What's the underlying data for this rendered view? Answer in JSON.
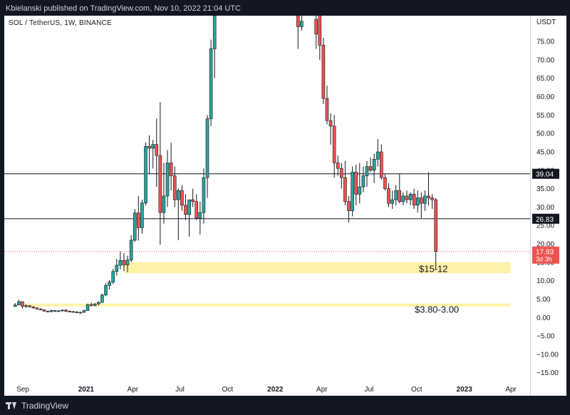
{
  "header": {
    "publish_line": "Kbielanski published on TradingView.com, Nov 10, 2022 21:04 UTC"
  },
  "symbol": {
    "label": "SOL / TetherUS, 1W, BINANCE"
  },
  "scale": {
    "currency": "USDT"
  },
  "footer": {
    "brand": "TradingView"
  },
  "colors": {
    "up": "#26a69a",
    "down": "#ef5350",
    "zone": "#fff2a8",
    "line": "#131722",
    "price_marker": "#ef5350"
  },
  "chart_data": {
    "type": "candlestick",
    "timeframe": "1W",
    "ylim": [
      -17,
      82
    ],
    "y_ticks": [
      -15,
      -10,
      -5,
      0,
      5,
      10,
      15,
      20,
      25,
      30,
      35,
      40,
      45,
      50,
      55,
      60,
      65,
      70,
      75
    ],
    "x_ticks": [
      {
        "label": "Sep",
        "date": "2020-09-01",
        "bold": false
      },
      {
        "label": "2021",
        "date": "2021-01-01",
        "bold": true
      },
      {
        "label": "Apr",
        "date": "2021-04-01",
        "bold": false
      },
      {
        "label": "Jul",
        "date": "2021-07-01",
        "bold": false
      },
      {
        "label": "Oct",
        "date": "2021-10-01",
        "bold": false
      },
      {
        "label": "2022",
        "date": "2022-01-01",
        "bold": true
      },
      {
        "label": "Apr",
        "date": "2022-04-01",
        "bold": false
      },
      {
        "label": "Jul",
        "date": "2022-07-01",
        "bold": false
      },
      {
        "label": "Oct",
        "date": "2022-10-01",
        "bold": false
      },
      {
        "label": "2023",
        "date": "2023-01-01",
        "bold": true
      },
      {
        "label": "Apr",
        "date": "2023-04-01",
        "bold": false
      }
    ],
    "horizontal_lines": [
      {
        "price": 39.04,
        "label": "39.04"
      },
      {
        "price": 26.83,
        "label": "26.83"
      }
    ],
    "zones": [
      {
        "low": 12,
        "high": 15,
        "label": "$15-12",
        "from": "2021-03-15",
        "to": "2023-03-31"
      },
      {
        "low": 3.0,
        "high": 3.8,
        "label": "$3.80-3.00",
        "from": "2020-09-01",
        "to": "2023-03-31"
      }
    ],
    "last_price": {
      "value": 17.93,
      "label": "17.93",
      "countdown": "3d 3h"
    },
    "candles": [
      [
        "2020-08-17",
        3.0,
        3.9,
        2.9,
        3.4
      ],
      [
        "2020-08-24",
        3.4,
        4.8,
        3.3,
        4.3
      ],
      [
        "2020-08-31",
        4.3,
        4.4,
        2.4,
        3.0
      ],
      [
        "2020-09-07",
        3.0,
        3.6,
        2.6,
        3.2
      ],
      [
        "2020-09-14",
        3.2,
        3.4,
        2.7,
        2.9
      ],
      [
        "2020-09-21",
        2.9,
        3.1,
        2.4,
        2.6
      ],
      [
        "2020-09-28",
        2.6,
        2.8,
        2.1,
        2.3
      ],
      [
        "2020-10-05",
        2.3,
        2.5,
        1.9,
        2.1
      ],
      [
        "2020-10-12",
        2.1,
        2.2,
        1.6,
        1.7
      ],
      [
        "2020-10-19",
        1.7,
        1.9,
        1.4,
        1.6
      ],
      [
        "2020-10-26",
        1.6,
        2.1,
        1.4,
        1.9
      ],
      [
        "2020-11-02",
        1.9,
        2.0,
        1.5,
        1.7
      ],
      [
        "2020-11-09",
        1.7,
        2.0,
        1.5,
        1.8
      ],
      [
        "2020-11-16",
        1.8,
        2.2,
        1.6,
        2.0
      ],
      [
        "2020-11-23",
        2.0,
        2.3,
        1.5,
        1.7
      ],
      [
        "2020-11-30",
        1.7,
        1.9,
        1.4,
        1.6
      ],
      [
        "2020-12-07",
        1.6,
        1.8,
        1.3,
        1.5
      ],
      [
        "2020-12-14",
        1.5,
        1.7,
        1.2,
        1.3
      ],
      [
        "2020-12-21",
        1.3,
        1.6,
        1.0,
        1.4
      ],
      [
        "2020-12-28",
        1.4,
        2.1,
        1.3,
        1.9
      ],
      [
        "2021-01-04",
        1.9,
        3.8,
        1.8,
        3.5
      ],
      [
        "2021-01-11",
        3.5,
        4.1,
        3.0,
        3.3
      ],
      [
        "2021-01-18",
        3.3,
        3.9,
        3.0,
        3.7
      ],
      [
        "2021-01-25",
        3.7,
        4.4,
        3.3,
        4.1
      ],
      [
        "2021-02-01",
        4.1,
        6.5,
        4.0,
        6.1
      ],
      [
        "2021-02-08",
        6.1,
        9.3,
        5.8,
        8.7
      ],
      [
        "2021-02-15",
        8.7,
        10.2,
        7.6,
        9.6
      ],
      [
        "2021-02-22",
        9.6,
        13.2,
        9.1,
        12.5
      ],
      [
        "2021-03-01",
        12.5,
        15.9,
        11.4,
        14.2
      ],
      [
        "2021-03-08",
        14.2,
        18.0,
        13.1,
        15.5
      ],
      [
        "2021-03-15",
        15.5,
        17.5,
        12.6,
        14.3
      ],
      [
        "2021-03-22",
        14.3,
        16.8,
        12.3,
        15.6
      ],
      [
        "2021-03-29",
        15.6,
        22.4,
        15.1,
        21.0
      ],
      [
        "2021-04-05",
        21.0,
        29.5,
        20.6,
        28.4
      ],
      [
        "2021-04-12",
        28.4,
        33.0,
        20.9,
        24.4
      ],
      [
        "2021-04-19",
        24.4,
        32.0,
        22.8,
        31.1
      ],
      [
        "2021-04-26",
        31.1,
        47.5,
        30.5,
        46.5
      ],
      [
        "2021-05-03",
        46.5,
        49.5,
        39.0,
        46.0
      ],
      [
        "2021-05-10",
        46.0,
        48.2,
        40.5,
        47.0
      ],
      [
        "2021-05-17",
        47.0,
        54.0,
        35.5,
        44.0
      ],
      [
        "2021-05-24",
        44.0,
        58.5,
        19.8,
        28.5
      ],
      [
        "2021-05-31",
        28.5,
        42.0,
        25.5,
        33.0
      ],
      [
        "2021-06-07",
        33.0,
        45.5,
        30.0,
        42.0
      ],
      [
        "2021-06-14",
        42.0,
        47.5,
        34.5,
        38.5
      ],
      [
        "2021-06-21",
        38.5,
        41.0,
        30.0,
        32.0
      ],
      [
        "2021-06-28",
        32.0,
        35.0,
        21.0,
        34.5
      ],
      [
        "2021-07-05",
        34.5,
        36.0,
        29.0,
        30.5
      ],
      [
        "2021-07-12",
        30.5,
        33.5,
        26.5,
        28.0
      ],
      [
        "2021-07-19",
        28.0,
        32.0,
        22.0,
        32.0
      ],
      [
        "2021-07-26",
        32.0,
        35.0,
        30.0,
        31.5
      ],
      [
        "2021-08-02",
        31.5,
        33.5,
        26.5,
        27.0
      ],
      [
        "2021-08-09",
        27.0,
        31.5,
        22.5,
        28.5
      ],
      [
        "2021-08-16",
        28.5,
        40.5,
        25.5,
        38.0
      ],
      [
        "2021-08-23",
        38.0,
        55.0,
        32.5,
        54.0
      ],
      [
        "2021-08-30",
        54.0,
        75.5,
        52.0,
        73.0
      ],
      [
        "2021-09-06",
        73.0,
        84.0,
        65.0,
        82.0
      ],
      [
        "2022-02-14",
        82.0,
        85.0,
        73.0,
        79.0
      ],
      [
        "2022-02-21",
        79.0,
        84.0,
        78.0,
        80.5
      ],
      [
        "2022-03-21",
        81.0,
        85.0,
        73.0,
        77.0
      ],
      [
        "2022-03-28",
        84.0,
        85.0,
        70.0,
        74.0
      ],
      [
        "2022-04-04",
        74.0,
        76.0,
        58.0,
        59.5
      ],
      [
        "2022-04-11",
        59.5,
        63.0,
        52.5,
        53.5
      ],
      [
        "2022-04-18",
        53.5,
        55.5,
        47.0,
        52.0
      ],
      [
        "2022-04-25",
        52.0,
        55.0,
        38.0,
        42.0
      ],
      [
        "2022-05-02",
        42.0,
        44.0,
        38.5,
        40.5
      ],
      [
        "2022-05-09",
        40.5,
        42.0,
        35.0,
        38.0
      ],
      [
        "2022-05-16",
        38.0,
        42.5,
        30.5,
        31.5
      ],
      [
        "2022-05-23",
        31.5,
        33.0,
        25.8,
        29.0
      ],
      [
        "2022-05-30",
        29.0,
        41.0,
        27.5,
        39.5
      ],
      [
        "2022-06-06",
        39.5,
        41.5,
        30.5,
        33.5
      ],
      [
        "2022-06-13",
        33.5,
        42.0,
        31.0,
        35.5
      ],
      [
        "2022-06-20",
        35.5,
        41.0,
        34.0,
        38.5
      ],
      [
        "2022-06-27",
        38.5,
        42.5,
        35.5,
        41.0
      ],
      [
        "2022-07-04",
        41.0,
        43.5,
        39.5,
        40.0
      ],
      [
        "2022-07-11",
        40.0,
        44.5,
        36.5,
        43.0
      ],
      [
        "2022-07-18",
        43.0,
        48.5,
        41.0,
        45.0
      ],
      [
        "2022-07-25",
        45.0,
        47.0,
        37.5,
        38.0
      ],
      [
        "2022-08-01",
        38.0,
        39.0,
        34.5,
        35.0
      ],
      [
        "2022-08-08",
        35.0,
        36.5,
        30.0,
        31.0
      ],
      [
        "2022-08-15",
        31.0,
        34.5,
        29.5,
        32.0
      ],
      [
        "2022-08-22",
        32.0,
        36.0,
        30.5,
        34.5
      ],
      [
        "2022-08-29",
        34.5,
        39.0,
        31.0,
        31.5
      ],
      [
        "2022-09-05",
        31.5,
        34.0,
        30.5,
        33.0
      ],
      [
        "2022-09-12",
        33.0,
        34.5,
        31.0,
        32.0
      ],
      [
        "2022-09-19",
        32.0,
        34.0,
        30.5,
        33.5
      ],
      [
        "2022-09-26",
        33.5,
        35.0,
        29.5,
        30.5
      ],
      [
        "2022-10-03",
        30.5,
        34.5,
        28.5,
        32.5
      ],
      [
        "2022-10-10",
        32.5,
        34.0,
        27.0,
        31.0
      ],
      [
        "2022-10-17",
        31.0,
        34.5,
        29.0,
        33.0
      ],
      [
        "2022-10-24",
        33.0,
        39.5,
        30.5,
        32.5
      ],
      [
        "2022-10-31",
        32.5,
        33.5,
        29.5,
        32.0
      ],
      [
        "2022-11-07",
        32.0,
        32.5,
        13.0,
        17.93
      ]
    ]
  }
}
